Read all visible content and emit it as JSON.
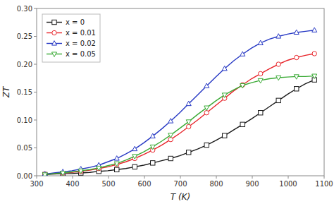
{
  "chart_data": {
    "type": "line",
    "xlabel": "T (K)",
    "ylabel": "ZT",
    "x": [
      323,
      348,
      373,
      398,
      423,
      448,
      473,
      498,
      523,
      548,
      573,
      598,
      623,
      648,
      673,
      698,
      723,
      748,
      773,
      798,
      823,
      848,
      873,
      898,
      923,
      948,
      973,
      998,
      1023,
      1048,
      1073
    ],
    "series": [
      {
        "name": "x = 0",
        "color": "#1a1a1a",
        "marker": "square",
        "values": [
          0.002,
          0.003,
          0.004,
          0.004,
          0.005,
          0.006,
          0.008,
          0.009,
          0.011,
          0.013,
          0.016,
          0.019,
          0.023,
          0.027,
          0.031,
          0.036,
          0.042,
          0.048,
          0.055,
          0.063,
          0.072,
          0.082,
          0.092,
          0.102,
          0.113,
          0.124,
          0.135,
          0.146,
          0.156,
          0.165,
          0.172
        ]
      },
      {
        "name": "x = 0.01",
        "color": "#e8242a",
        "marker": "circle",
        "values": [
          0.003,
          0.004,
          0.005,
          0.006,
          0.008,
          0.01,
          0.013,
          0.016,
          0.02,
          0.025,
          0.031,
          0.038,
          0.046,
          0.055,
          0.065,
          0.076,
          0.088,
          0.1,
          0.113,
          0.126,
          0.139,
          0.152,
          0.163,
          0.174,
          0.183,
          0.192,
          0.2,
          0.207,
          0.212,
          0.216,
          0.219
        ]
      },
      {
        "name": "x = 0.02",
        "color": "#2638c4",
        "marker": "triangle-up",
        "values": [
          0.003,
          0.005,
          0.007,
          0.009,
          0.012,
          0.015,
          0.019,
          0.025,
          0.031,
          0.039,
          0.048,
          0.059,
          0.071,
          0.084,
          0.098,
          0.113,
          0.129,
          0.145,
          0.161,
          0.177,
          0.192,
          0.206,
          0.218,
          0.229,
          0.238,
          0.245,
          0.25,
          0.254,
          0.257,
          0.259,
          0.261
        ]
      },
      {
        "name": "x = 0.05",
        "color": "#3aaa35",
        "marker": "triangle-down",
        "values": [
          0.002,
          0.004,
          0.005,
          0.007,
          0.009,
          0.011,
          0.014,
          0.018,
          0.022,
          0.028,
          0.035,
          0.043,
          0.052,
          0.062,
          0.073,
          0.085,
          0.097,
          0.11,
          0.122,
          0.134,
          0.145,
          0.154,
          0.162,
          0.167,
          0.171,
          0.174,
          0.176,
          0.177,
          0.178,
          0.178,
          0.179
        ]
      }
    ],
    "xlim": [
      300,
      1100
    ],
    "xticks": [
      300,
      400,
      500,
      600,
      700,
      800,
      900,
      1000,
      1100
    ],
    "ylim": [
      0,
      0.3
    ],
    "yticks": [
      {
        "value": 0,
        "label": "0.00"
      },
      0.05,
      {
        "value": 0.1,
        "label": "0.10"
      },
      0.15,
      {
        "value": 0.2,
        "label": "0.20"
      },
      0.25,
      {
        "value": 0.3,
        "label": "0.30"
      }
    ],
    "grid": false,
    "legend": "upper left"
  }
}
